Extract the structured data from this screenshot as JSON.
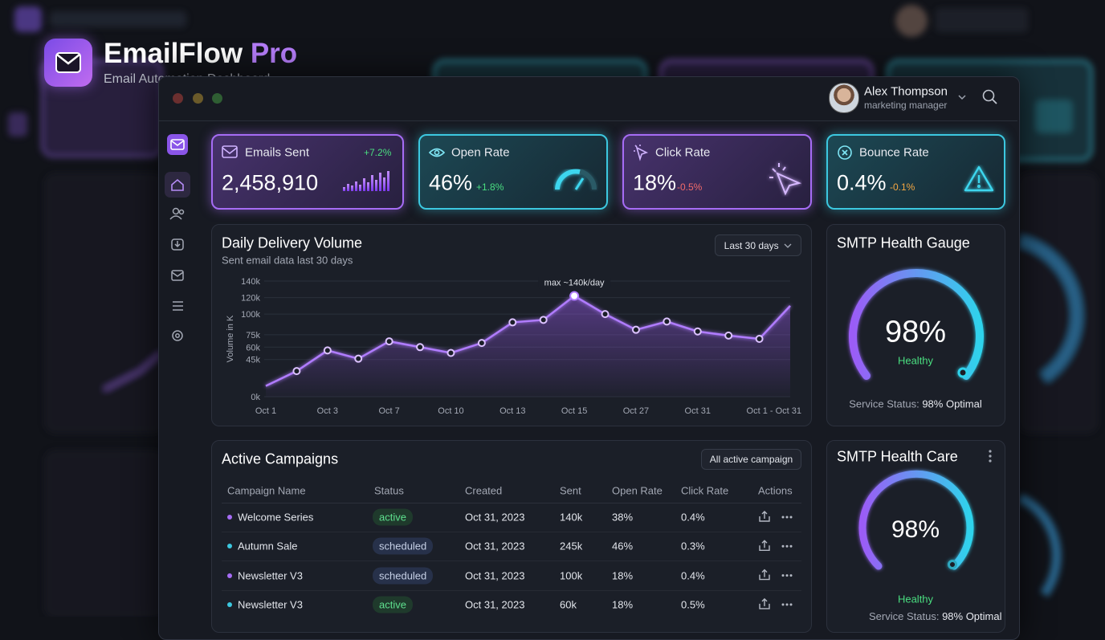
{
  "header": {
    "title": "EmailFlow",
    "title_accent": "Pro",
    "subtitle": "Email Automation Dashboard"
  },
  "user": {
    "name": "Alex Thompson",
    "role": "marketing manager"
  },
  "kpis": [
    {
      "label": "Emails Sent",
      "value": "2,458,910",
      "change": "+7.2%"
    },
    {
      "label": "Open Rate",
      "value": "46%",
      "change": "+1.8%"
    },
    {
      "label": "Click Rate",
      "value": "18%",
      "change": "-0.5%"
    },
    {
      "label": "Bounce Rate",
      "value": "0.4%",
      "change": "-0.1%"
    }
  ],
  "chart_data": {
    "type": "line",
    "title": "Daily Delivery Volume",
    "subtitle": "Sent email data last 30 days",
    "range_selector": "Last 30 days",
    "y_label": "Volume in K",
    "annotation": "max ~140k/day",
    "color": "#b07cff",
    "grid": true,
    "categories": [
      "Oct 1",
      null,
      "Oct 3",
      null,
      "Oct 7",
      null,
      "Oct 10",
      null,
      "Oct 13",
      null,
      "Oct 15",
      null,
      "Oct 27",
      null,
      "Oct 31",
      null,
      null,
      "Oct 1 - Oct 31"
    ],
    "values": [
      13,
      31,
      56,
      46,
      67,
      60,
      53,
      65,
      90,
      93,
      122,
      100,
      81,
      91,
      79,
      74,
      70,
      110
    ],
    "ylim": [
      0,
      140
    ],
    "yticks": [
      {
        "value": 0,
        "label": "0k"
      },
      {
        "value": 45,
        "label": "45k"
      },
      {
        "value": 60,
        "label": "60k"
      },
      {
        "value": 75,
        "label": "75k"
      },
      {
        "value": 100,
        "label": "100k"
      },
      {
        "value": 120,
        "label": "120k"
      },
      {
        "value": 140,
        "label": "140k"
      }
    ]
  },
  "health_gauge": {
    "title": "SMTP Health Gauge",
    "value": "98%",
    "status": "Healthy",
    "service_label": "Service Status:",
    "service_value": "98% Optimal"
  },
  "health_care": {
    "title": "SMTP Health Care",
    "value": "98%",
    "status": "Healthy",
    "service_label": "Service Status:",
    "service_value": "98% Optimal"
  },
  "campaigns": {
    "title": "Active Campaigns",
    "filter": "All active campaign",
    "columns": [
      "Campaign Name",
      "Status",
      "Created",
      "Sent",
      "Open Rate",
      "Click Rate",
      "Actions"
    ],
    "rows": [
      [
        "Welcome Series",
        "active",
        "Oct 31, 2023",
        "140k",
        "38%",
        "0.4%"
      ],
      [
        "Autumn Sale",
        "scheduled",
        "Oct 31, 2023",
        "245k",
        "46%",
        "0.3%"
      ],
      [
        "Newsletter V3",
        "scheduled",
        "Oct 31, 2023",
        "100k",
        "18%",
        "0.4%"
      ],
      [
        "Newsletter V3",
        "active",
        "Oct 31, 2023",
        "60k",
        "18%",
        "0.5%"
      ]
    ]
  }
}
